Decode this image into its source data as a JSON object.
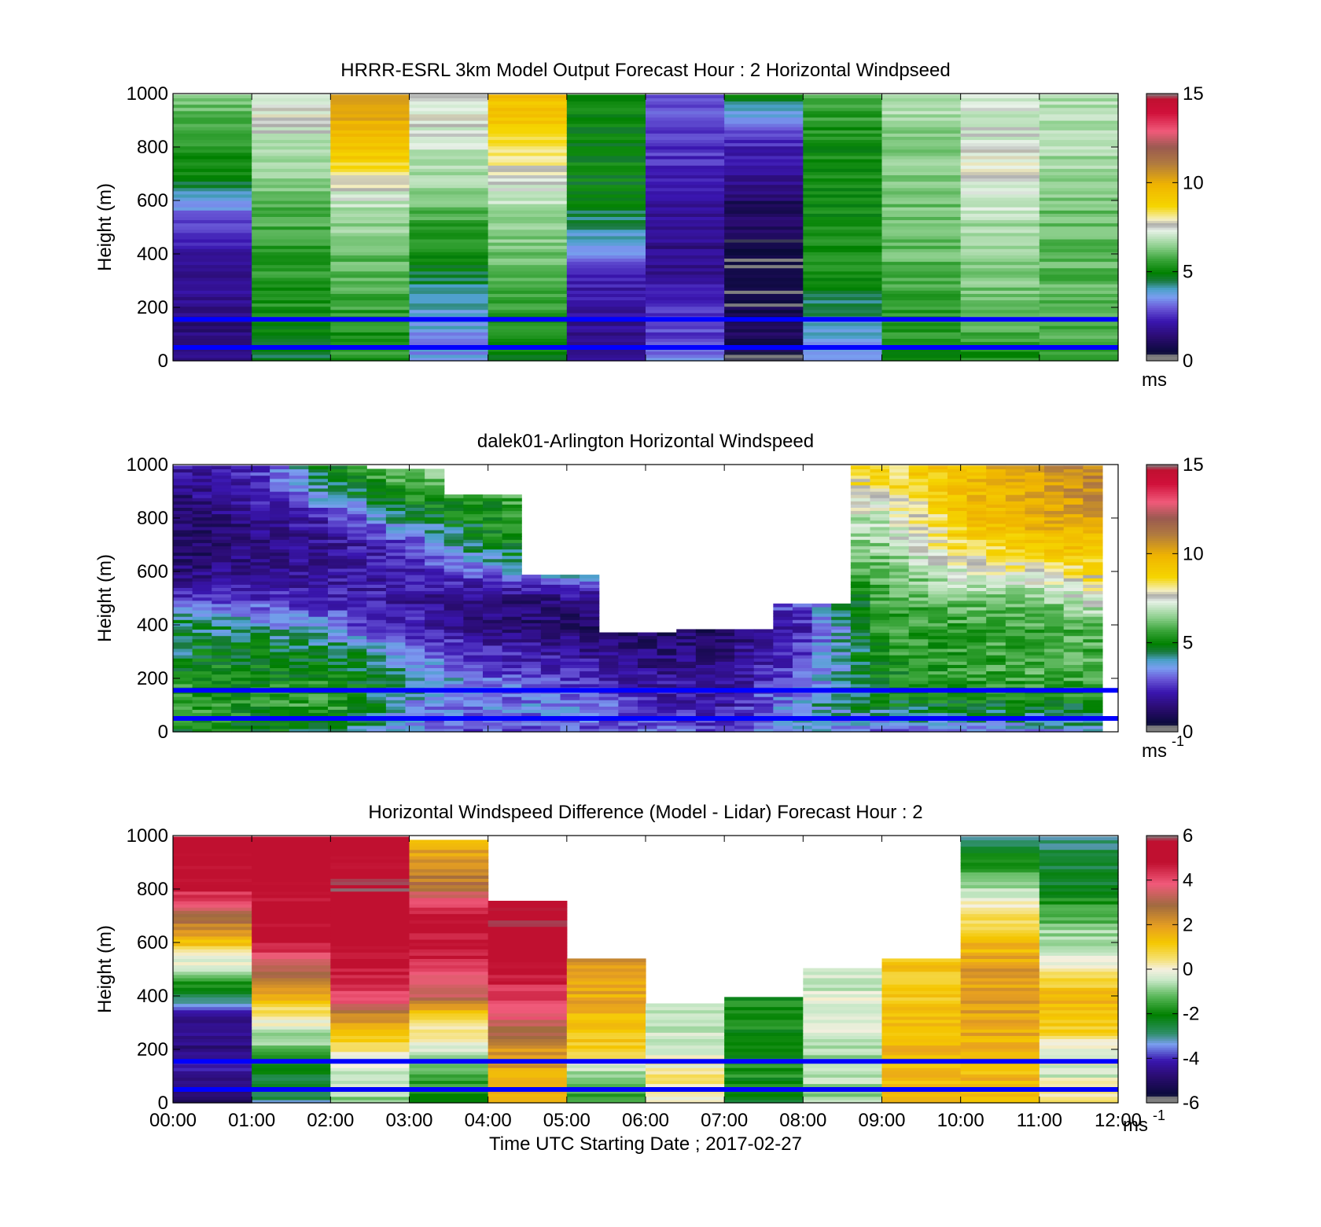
{
  "chart_data": [
    {
      "type": "heatmap",
      "title": "HRRR-ESRL 3km Model Output   Forecast Hour : 2 Horizontal Windpseed",
      "ylabel": "Height (m)",
      "ylim": [
        0,
        1000
      ],
      "yticks": [
        "0",
        "200",
        "400",
        "600",
        "800",
        "1000"
      ],
      "xlim": [
        "00:00",
        "12:00"
      ],
      "colorbar": {
        "ticks": [
          "0",
          "5",
          "10",
          "15"
        ],
        "unit": "ms",
        "unit_exp": "",
        "min": 0,
        "max": 15
      },
      "reference_lines_m": [
        50,
        155
      ],
      "time_hours": [
        0,
        1,
        2,
        3,
        4,
        5,
        6,
        7,
        8,
        9,
        10,
        11,
        12
      ],
      "heights_m": [
        0,
        100,
        200,
        300,
        400,
        500,
        600,
        700,
        800,
        900,
        1000
      ],
      "values": [
        [
          1.6,
          4.2,
          5.3,
          3.2,
          4.6,
          1.7,
          3.3,
          0.2,
          3.4,
          4.9,
          5.0,
          5.0
        ],
        [
          1.0,
          4.8,
          5.1,
          3.4,
          5.2,
          1.4,
          2.4,
          0.5,
          3.5,
          5.2,
          5.5,
          5.6
        ],
        [
          1.3,
          5.1,
          5.4,
          3.6,
          5.4,
          1.6,
          2.1,
          0.3,
          4.1,
          5.3,
          5.9,
          5.9
        ],
        [
          1.5,
          5.2,
          5.8,
          4.2,
          5.8,
          1.9,
          1.6,
          0.0,
          4.9,
          5.7,
          6.2,
          5.8
        ],
        [
          1.8,
          5.3,
          5.9,
          4.9,
          6.0,
          3.0,
          1.3,
          0.0,
          5.0,
          5.9,
          6.3,
          5.9
        ],
        [
          2.3,
          5.6,
          6.4,
          5.4,
          6.3,
          4.1,
          1.4,
          0.6,
          5.0,
          6.0,
          6.6,
          6.0
        ],
        [
          3.4,
          5.8,
          6.9,
          6.0,
          6.9,
          4.5,
          1.6,
          0.7,
          5.0,
          6.1,
          7.0,
          6.1
        ],
        [
          4.7,
          6.6,
          8.0,
          6.6,
          7.5,
          4.8,
          2.0,
          1.6,
          5.0,
          6.2,
          7.6,
          6.5
        ],
        [
          5.3,
          6.6,
          9.5,
          6.9,
          8.5,
          4.8,
          2.3,
          1.9,
          4.9,
          6.3,
          7.2,
          6.6
        ],
        [
          5.8,
          7.5,
          10.0,
          7.3,
          9.2,
          4.8,
          2.6,
          3.2,
          5.3,
          6.5,
          7.1,
          6.6
        ],
        [
          6.3,
          7.3,
          10.2,
          7.5,
          9.5,
          4.7,
          2.8,
          4.6,
          5.5,
          6.6,
          6.8,
          6.6
        ]
      ]
    },
    {
      "type": "heatmap",
      "title": "dalek01-Arlington  Horizontal Windspeed",
      "ylabel": "Height (m)",
      "ylim": [
        0,
        1000
      ],
      "yticks": [
        "0",
        "200",
        "400",
        "600",
        "800",
        "1000"
      ],
      "xlim": [
        "00:00",
        "12:00"
      ],
      "colorbar": {
        "ticks": [
          "0",
          "5",
          "10",
          "15"
        ],
        "unit": "ms",
        "unit_exp": "-1",
        "min": 0,
        "max": 15
      },
      "reference_lines_m": [
        50,
        155
      ],
      "time_hours": [
        0,
        1,
        2,
        3,
        4,
        5,
        6,
        7,
        8,
        9,
        10,
        11,
        12
      ],
      "data_top_m": [
        1000,
        1000,
        1000,
        990,
        890,
        590,
        380,
        390,
        490,
        1000,
        1000,
        1000,
        1000
      ],
      "heights_m": [
        0,
        100,
        200,
        300,
        400,
        500,
        600,
        700,
        800,
        900,
        1000
      ],
      "values": [
        [
          4.5,
          4.8,
          4.4,
          3.0,
          2.5,
          2.6,
          2.8,
          2.4,
          3.4,
          2.7,
          3.0,
          3.2,
          3.6
        ],
        [
          5.6,
          5.1,
          5.6,
          3.3,
          3.0,
          3.2,
          2.1,
          1.8,
          3.6,
          4.5,
          4.8,
          4.6,
          5.0
        ],
        [
          5.2,
          5.0,
          5.0,
          4.3,
          2.8,
          2.3,
          1.6,
          1.4,
          2.8,
          4.8,
          5.4,
          5.6,
          5.6
        ],
        [
          4.2,
          4.7,
          4.6,
          3.0,
          2.0,
          1.6,
          1.0,
          1.2,
          2.4,
          5.2,
          5.3,
          5.6,
          5.7
        ],
        [
          4.5,
          3.7,
          3.0,
          2.0,
          1.2,
          0.8,
          0.6,
          0.6,
          2.0,
          5.3,
          5.5,
          5.6,
          6.0
        ],
        [
          2.2,
          2.3,
          2.0,
          1.6,
          1.0,
          1.2,
          null,
          null,
          3.0,
          5.6,
          6.0,
          6.2,
          7.6
        ],
        [
          1.0,
          1.4,
          1.6,
          2.0,
          3.0,
          4.0,
          null,
          null,
          null,
          5.8,
          7.2,
          7.8,
          8.8
        ],
        [
          0.6,
          1.2,
          1.4,
          2.4,
          4.6,
          5.4,
          null,
          null,
          null,
          6.4,
          8.6,
          9.2,
          9.6
        ],
        [
          0.7,
          1.3,
          2.0,
          4.2,
          5.0,
          5.4,
          null,
          null,
          null,
          6.8,
          9.2,
          10.0,
          10.4
        ],
        [
          1.2,
          1.8,
          4.0,
          5.4,
          5.2,
          7.0,
          null,
          null,
          null,
          8.0,
          9.6,
          10.2,
          11.2
        ],
        [
          1.8,
          2.2,
          4.8,
          6.5,
          7.0,
          7.8,
          null,
          null,
          null,
          8.5,
          9.5,
          10.5,
          11.5
        ]
      ]
    },
    {
      "type": "heatmap",
      "title": "Horizontal Windspeed Difference (Model - Lidar) Forecast Hour : 2",
      "ylabel": "Height (m)",
      "xlabel": "Time UTC  Starting Date ; 2017-02-27",
      "ylim": [
        0,
        1000
      ],
      "yticks": [
        "0",
        "200",
        "400",
        "600",
        "800",
        "1000"
      ],
      "xticks": [
        "00:00",
        "01:00",
        "02:00",
        "03:00",
        "04:00",
        "05:00",
        "06:00",
        "07:00",
        "08:00",
        "09:00",
        "10:00",
        "11:00",
        "12:00"
      ],
      "colorbar": {
        "ticks": [
          "-6",
          "-4",
          "-2",
          "0",
          "2",
          "4",
          "6"
        ],
        "unit": "ms",
        "unit_exp": "-1",
        "min": -6,
        "max": 6
      },
      "reference_lines_m": [
        50,
        155
      ],
      "time_hours": [
        0,
        1,
        2,
        3,
        4,
        5,
        6,
        7,
        8,
        9,
        10,
        11,
        12
      ],
      "data_top_m": [
        1000,
        1000,
        1000,
        990,
        760,
        550,
        375,
        400,
        505,
        545,
        1000,
        1000
      ],
      "heights_m": [
        0,
        100,
        200,
        300,
        400,
        500,
        600,
        700,
        800,
        900,
        1000
      ],
      "values": [
        [
          -5.2,
          -3.2,
          -1.0,
          -2.4,
          1.4,
          -1.8,
          -0.3,
          -2.6,
          -1.0,
          1.8,
          1.6,
          0.8
        ],
        [
          -4.6,
          -2.6,
          -0.4,
          -1.4,
          1.8,
          -1.0,
          0.4,
          -2.0,
          -0.6,
          1.4,
          1.4,
          -0.4
        ],
        [
          -4.8,
          -1.2,
          0.4,
          -0.4,
          2.2,
          0.8,
          -0.6,
          -2.2,
          -0.8,
          1.6,
          1.6,
          0.0
        ],
        [
          -5.0,
          -0.2,
          1.8,
          0.6,
          3.6,
          1.4,
          -0.4,
          -2.0,
          -0.2,
          1.4,
          1.8,
          1.2
        ],
        [
          -2.6,
          1.6,
          4.4,
          3.2,
          4.4,
          1.8,
          null,
          -2.2,
          -0.4,
          1.0,
          2.0,
          1.6
        ],
        [
          -0.8,
          3.2,
          5.0,
          4.4,
          5.2,
          2.2,
          null,
          null,
          -0.6,
          1.2,
          2.0,
          0.0
        ],
        [
          1.2,
          5.0,
          5.4,
          5.0,
          5.4,
          null,
          null,
          null,
          null,
          null,
          1.4,
          -0.6
        ],
        [
          3.4,
          5.2,
          5.6,
          5.2,
          5.8,
          null,
          null,
          null,
          null,
          null,
          0.6,
          -1.4
        ],
        [
          4.8,
          5.2,
          6.0,
          3.0,
          null,
          null,
          null,
          null,
          null,
          null,
          -0.8,
          -2.6
        ],
        [
          5.2,
          5.4,
          5.2,
          2.0,
          null,
          null,
          null,
          null,
          null,
          null,
          -2.2,
          -2.8
        ],
        [
          5.6,
          5.2,
          5.6,
          1.6,
          null,
          null,
          null,
          null,
          null,
          null,
          -3.0,
          -3.2
        ]
      ]
    }
  ]
}
